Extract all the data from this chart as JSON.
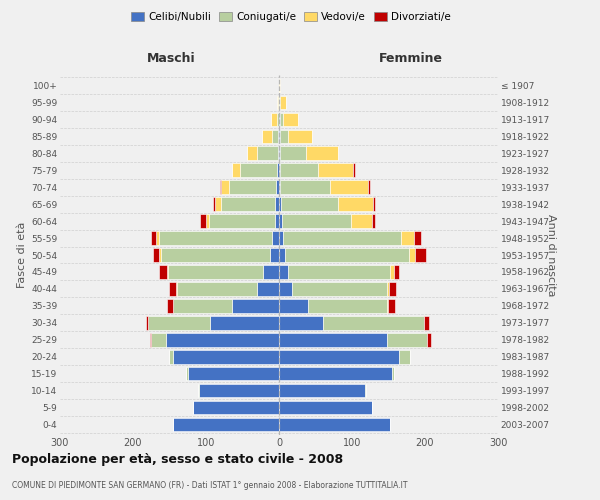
{
  "age_groups_bottom_to_top": [
    "0-4",
    "5-9",
    "10-14",
    "15-19",
    "20-24",
    "25-29",
    "30-34",
    "35-39",
    "40-44",
    "45-49",
    "50-54",
    "55-59",
    "60-64",
    "65-69",
    "70-74",
    "75-79",
    "80-84",
    "85-89",
    "90-94",
    "95-99",
    "100+"
  ],
  "birth_years_bottom_to_top": [
    "2003-2007",
    "1998-2002",
    "1993-1997",
    "1988-1992",
    "1983-1987",
    "1978-1982",
    "1973-1977",
    "1968-1972",
    "1963-1967",
    "1958-1962",
    "1953-1957",
    "1948-1952",
    "1943-1947",
    "1938-1942",
    "1933-1937",
    "1928-1932",
    "1923-1927",
    "1918-1922",
    "1913-1917",
    "1908-1912",
    "≤ 1907"
  ],
  "colors": {
    "celibe": "#4472c4",
    "coniugato": "#b8cfa0",
    "vedovo": "#ffd966",
    "divorziato": "#c00000"
  },
  "maschi": {
    "celibe": [
      145,
      118,
      110,
      125,
      145,
      155,
      95,
      65,
      30,
      22,
      12,
      10,
      6,
      5,
      4,
      3,
      2,
      1,
      0,
      0,
      0
    ],
    "coniugato": [
      0,
      0,
      1,
      2,
      6,
      20,
      85,
      80,
      110,
      130,
      150,
      155,
      90,
      75,
      65,
      50,
      28,
      8,
      3,
      1,
      0
    ],
    "vedovo": [
      0,
      0,
      0,
      0,
      0,
      0,
      0,
      0,
      1,
      2,
      2,
      3,
      4,
      8,
      10,
      12,
      14,
      14,
      8,
      2,
      0
    ],
    "divorziato": [
      0,
      0,
      0,
      0,
      0,
      2,
      2,
      8,
      10,
      10,
      8,
      8,
      8,
      2,
      2,
      0,
      0,
      0,
      0,
      0,
      0
    ]
  },
  "femmine": {
    "nubile": [
      152,
      128,
      118,
      155,
      165,
      148,
      60,
      40,
      18,
      12,
      8,
      5,
      4,
      3,
      2,
      2,
      2,
      2,
      1,
      0,
      0
    ],
    "coniugata": [
      0,
      0,
      1,
      2,
      14,
      55,
      138,
      108,
      130,
      140,
      170,
      162,
      95,
      78,
      68,
      52,
      35,
      10,
      5,
      2,
      0
    ],
    "vedova": [
      0,
      0,
      0,
      0,
      0,
      0,
      0,
      1,
      2,
      5,
      8,
      18,
      28,
      48,
      52,
      48,
      44,
      33,
      20,
      8,
      2
    ],
    "divorziata": [
      0,
      0,
      0,
      0,
      0,
      5,
      8,
      10,
      10,
      8,
      15,
      10,
      5,
      2,
      2,
      2,
      0,
      0,
      0,
      0,
      0
    ]
  },
  "xlim": 300,
  "title": "Popolazione per età, sesso e stato civile - 2008",
  "subtitle": "COMUNE DI PIEDIMONTE SAN GERMANO (FR) - Dati ISTAT 1° gennaio 2008 - Elaborazione TUTTITALIA.IT",
  "xlabel_maschi": "Maschi",
  "xlabel_femmine": "Femmine",
  "ylabel": "Fasce di età",
  "ylabel_right": "Anni di nascita",
  "legend_labels": [
    "Celibi/Nubili",
    "Coniugati/e",
    "Vedovi/e",
    "Divorziati/e"
  ],
  "bg_color": "#f0f0f0",
  "bar_edge_color": "white",
  "grid_color": "#cccccc"
}
